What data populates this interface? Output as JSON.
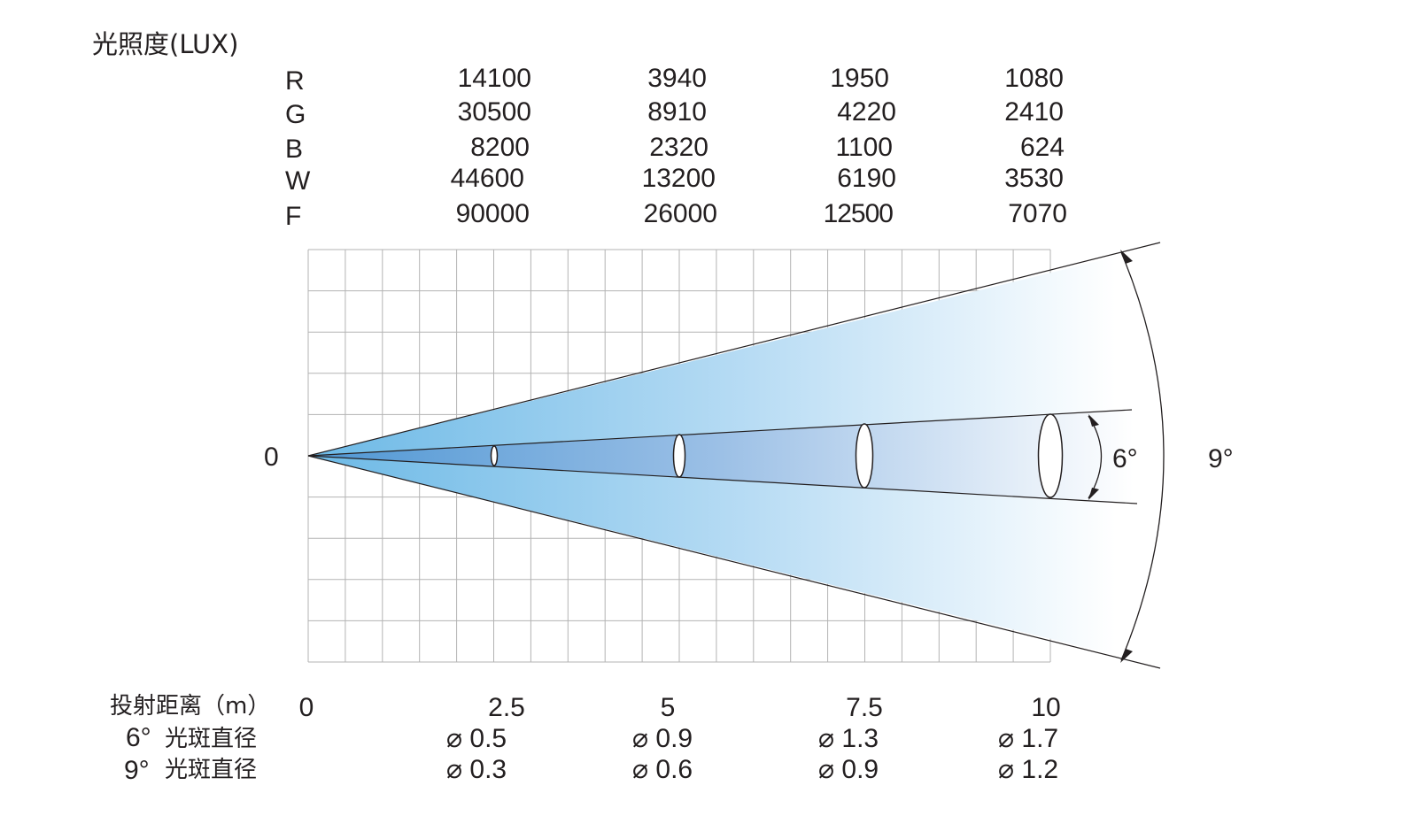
{
  "title": "光照度(LUX)",
  "lux_table": {
    "rows": [
      {
        "label": "R",
        "values": [
          "14100",
          "3940",
          "1950",
          "1080"
        ]
      },
      {
        "label": "G",
        "values": [
          "30500",
          "8910",
          "4220",
          "2410"
        ]
      },
      {
        "label": "B",
        "values": [
          "8200",
          "2320",
          "1100",
          "624"
        ]
      },
      {
        "label": "W",
        "values": [
          "44600",
          "13200",
          "6190",
          "3530"
        ]
      },
      {
        "label": "F",
        "values": [
          "90000",
          "26000",
          "12500",
          "7070"
        ]
      }
    ]
  },
  "origin_label": "0",
  "angles": {
    "narrow": "6°",
    "wide": "9°"
  },
  "distance_row": {
    "label": "投射距离（m）",
    "values": [
      "0",
      "2.5",
      "5",
      "7.5",
      "10"
    ]
  },
  "spot_rows": [
    {
      "angle": "6°",
      "label": "光斑直径",
      "values": [
        "⌀ 0.5",
        "⌀ 0.9",
        "⌀ 1.3",
        "⌀ 1.7"
      ]
    },
    {
      "angle": "9°",
      "label": "光斑直径",
      "values": [
        "⌀ 0.3",
        "⌀ 0.6",
        "⌀ 0.9",
        "⌀ 1.2"
      ]
    }
  ],
  "colors": {
    "beam_dark": "#5aa9dc",
    "beam_light": "#ffffff",
    "grid": "#b3b3b3",
    "line": "#231f20"
  }
}
